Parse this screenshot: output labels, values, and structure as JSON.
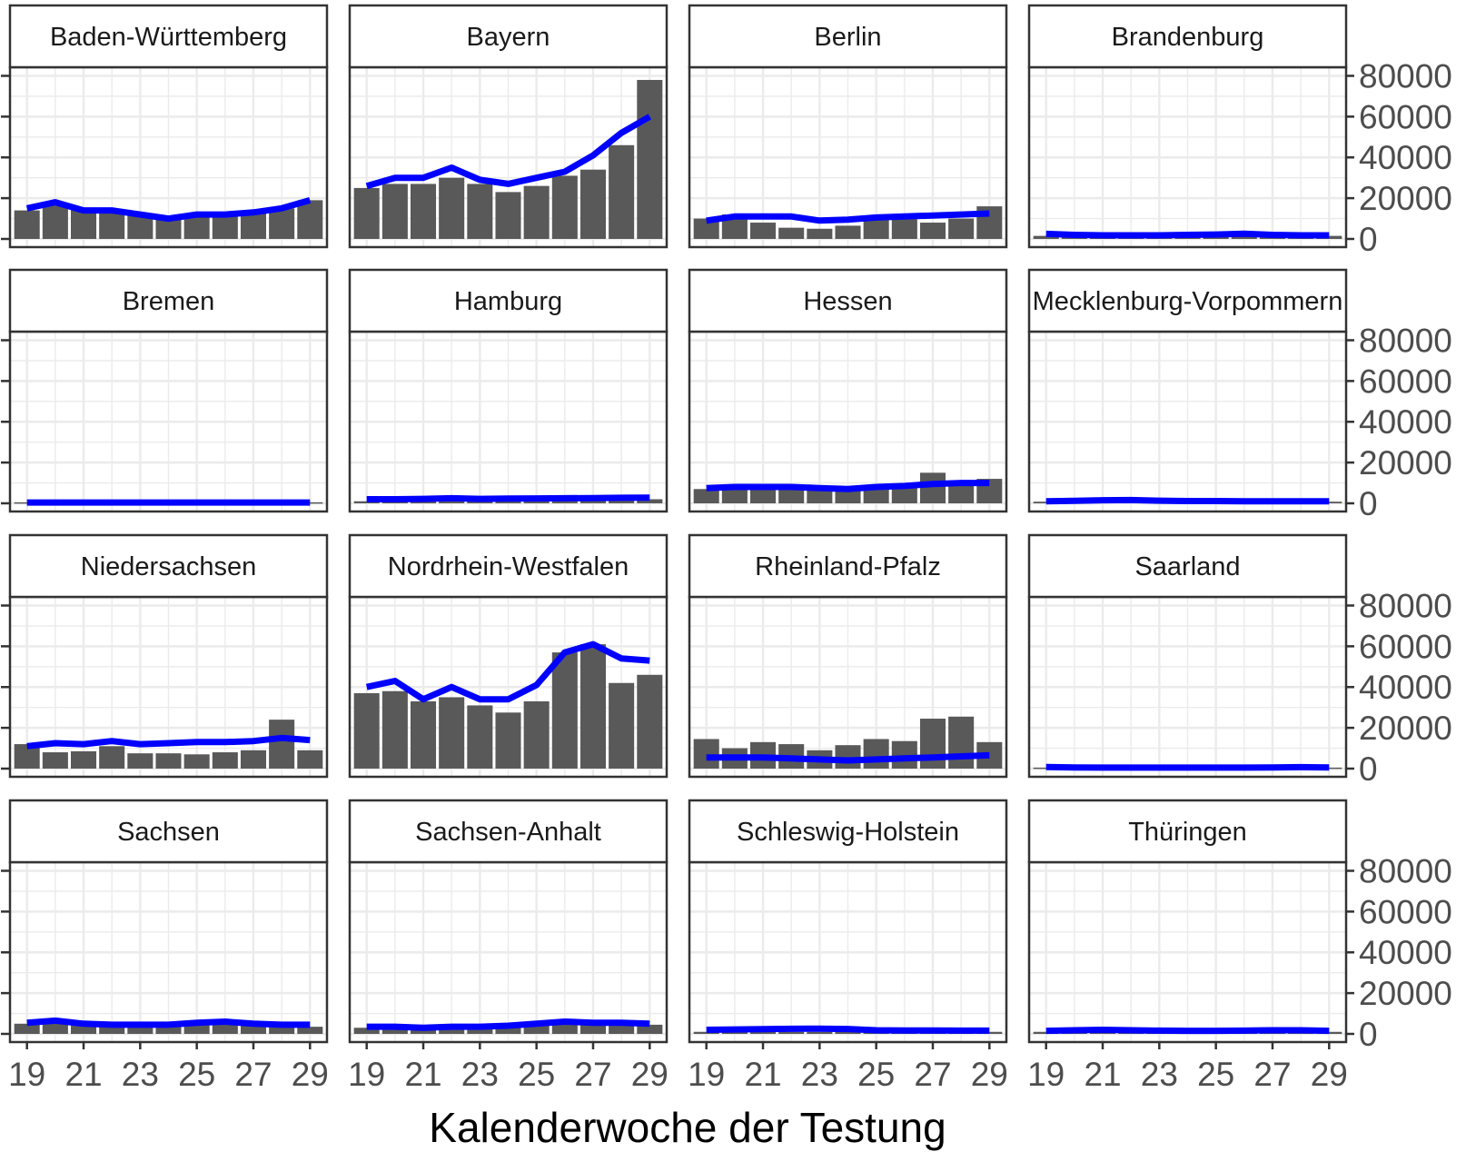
{
  "chart_data": {
    "type": "bar",
    "layout": "facet-grid 4x4, free-scale bars with line overlay",
    "xlabel": "Kalenderwoche der Testung",
    "x": [
      19,
      20,
      21,
      22,
      23,
      24,
      25,
      26,
      27,
      28,
      29
    ],
    "x_ticks": [
      "19",
      "21",
      "23",
      "25",
      "27",
      "29"
    ],
    "y_ticks": [
      "0",
      "20000",
      "40000",
      "60000",
      "80000"
    ],
    "ylim": [
      0,
      82000
    ],
    "grid": true,
    "colors": {
      "bar": "#595959",
      "line": "#0000ff",
      "strip_bg": "#ffffff",
      "panel_border": "#333333",
      "grid": "#ebebeb"
    },
    "series_roles": {
      "bars": "weekly tests (bars)",
      "line": "smoothed line (blue)"
    },
    "panels": [
      {
        "title": "Baden-Württemberg",
        "bars": [
          14000,
          17000,
          15000,
          14000,
          12000,
          10000,
          12000,
          12000,
          13000,
          15000,
          19000
        ],
        "line": [
          15000,
          18000,
          14000,
          14000,
          12000,
          10000,
          12000,
          12000,
          13000,
          15000,
          19000
        ]
      },
      {
        "title": "Bayern",
        "bars": [
          25000,
          27000,
          27000,
          30000,
          27000,
          23000,
          26000,
          31000,
          34000,
          46000,
          78000
        ],
        "line": [
          26000,
          30000,
          30000,
          35000,
          29000,
          27000,
          30000,
          33000,
          41000,
          52000,
          60000
        ]
      },
      {
        "title": "Berlin",
        "bars": [
          10000,
          12000,
          8000,
          5500,
          5000,
          6500,
          10000,
          10000,
          8000,
          10000,
          16000
        ],
        "line": [
          9000,
          11000,
          11000,
          11000,
          9000,
          9500,
          10500,
          11000,
          11500,
          12000,
          12500
        ]
      },
      {
        "title": "Brandenburg",
        "bars": [
          1500,
          1500,
          1500,
          1500,
          1500,
          1500,
          1500,
          1500,
          1500,
          1500,
          1500
        ],
        "line": [
          2500,
          2000,
          1800,
          1800,
          1800,
          2000,
          2200,
          2600,
          2000,
          1800,
          1800
        ]
      },
      {
        "title": "Bremen",
        "bars": [
          500,
          500,
          500,
          500,
          500,
          500,
          500,
          500,
          500,
          500,
          500
        ],
        "line": [
          400,
          400,
          400,
          400,
          400,
          400,
          400,
          400,
          400,
          400,
          400
        ]
      },
      {
        "title": "Hamburg",
        "bars": [
          1000,
          1500,
          2000,
          2500,
          2000,
          1500,
          1500,
          2000,
          2000,
          2500,
          2000
        ],
        "line": [
          2000,
          2000,
          2200,
          2500,
          2200,
          2300,
          2400,
          2500,
          2600,
          2700,
          2800
        ]
      },
      {
        "title": "Hessen",
        "bars": [
          7000,
          8000,
          7500,
          7000,
          7500,
          6500,
          8000,
          9000,
          15000,
          10000,
          12000
        ],
        "line": [
          7500,
          8000,
          8000,
          8000,
          7500,
          7000,
          8000,
          8500,
          9500,
          10000,
          10000
        ]
      },
      {
        "title": "Mecklenburg-Vorpommern",
        "bars": [
          800,
          800,
          900,
          900,
          800,
          800,
          800,
          800,
          800,
          800,
          800
        ],
        "line": [
          1000,
          1200,
          1500,
          1600,
          1300,
          1100,
          1100,
          1000,
          1000,
          1000,
          1000
        ]
      },
      {
        "title": "Niedersachsen",
        "bars": [
          12000,
          8000,
          8500,
          11000,
          7500,
          7500,
          7000,
          8000,
          9000,
          24000,
          9000
        ],
        "line": [
          11000,
          12500,
          12000,
          13500,
          12000,
          12500,
          13000,
          13000,
          13500,
          15000,
          14000
        ]
      },
      {
        "title": "Nordrhein-Westfalen",
        "bars": [
          37000,
          38000,
          33000,
          35000,
          31000,
          27500,
          33000,
          57000,
          61000,
          42000,
          46000
        ],
        "line": [
          40000,
          43000,
          34000,
          40000,
          34000,
          34000,
          41000,
          57000,
          61000,
          54000,
          53000
        ]
      },
      {
        "title": "Rheinland-Pfalz",
        "bars": [
          14500,
          10000,
          13000,
          12000,
          9000,
          11500,
          14500,
          13500,
          24500,
          25500,
          13000
        ],
        "line": [
          5500,
          5500,
          5500,
          5000,
          4500,
          4000,
          4500,
          5000,
          5500,
          6000,
          6500
        ]
      },
      {
        "title": "Saarland",
        "bars": [
          500,
          500,
          500,
          500,
          500,
          500,
          500,
          500,
          500,
          500,
          500
        ],
        "line": [
          800,
          600,
          500,
          500,
          500,
          500,
          500,
          500,
          600,
          700,
          600
        ]
      },
      {
        "title": "Sachsen",
        "bars": [
          5000,
          6500,
          4500,
          4000,
          4000,
          4000,
          5500,
          6000,
          4500,
          4500,
          3500
        ],
        "line": [
          5500,
          6500,
          5000,
          4500,
          4500,
          4500,
          5500,
          6000,
          5000,
          4500,
          4500
        ]
      },
      {
        "title": "Sachsen-Anhalt",
        "bars": [
          3000,
          3500,
          3000,
          3000,
          3000,
          3500,
          4000,
          5000,
          4500,
          4000,
          4500
        ],
        "line": [
          3500,
          3500,
          3000,
          3500,
          3500,
          4000,
          5000,
          6000,
          5500,
          5500,
          5000
        ]
      },
      {
        "title": "Schleswig-Holstein",
        "bars": [
          1000,
          1000,
          1000,
          1000,
          1000,
          1000,
          1000,
          1000,
          1000,
          1000,
          1000
        ],
        "line": [
          2000,
          2200,
          2300,
          2500,
          2600,
          2400,
          1800,
          1700,
          1700,
          1600,
          1600
        ]
      },
      {
        "title": "Thüringen",
        "bars": [
          1000,
          1000,
          1000,
          1000,
          1000,
          1000,
          1000,
          1000,
          1000,
          1000,
          1000
        ],
        "line": [
          1500,
          1800,
          2000,
          1800,
          1600,
          1500,
          1500,
          1600,
          1800,
          1800,
          1500
        ]
      }
    ]
  }
}
